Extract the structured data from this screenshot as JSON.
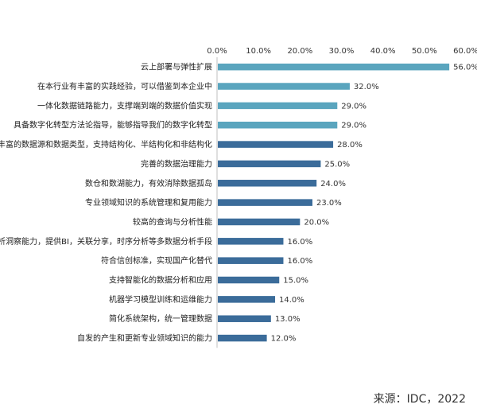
{
  "chart_data": {
    "type": "bar",
    "orientation": "horizontal",
    "xlim": [
      0,
      60
    ],
    "ticks": [
      "0.0%",
      "10.0%",
      "20.0%",
      "30.0%",
      "40.0%",
      "50.0%",
      "60.0%"
    ],
    "tick_values": [
      0,
      10,
      20,
      30,
      40,
      50,
      60
    ],
    "axis_position": "top",
    "grid": false,
    "categories": [
      "云上部署与弹性扩展",
      "在本行业有丰富的实践经验，可以借鉴到本企业中",
      "一体化数据链路能力，支撑端到端的数据价值实现",
      "具备数字化转型方法论指导，能够指导我们的数字化转型",
      "丰富的数据源和数据类型，支持结构化、半结构化和非结构化",
      "完善的数据治理能力",
      "数仓和数湖能力，有效消除数据孤岛",
      "专业领域知识的系统管理和复用能力",
      "较高的查询与分析性能",
      "分析洞察能力，提供BI，关联分享，时序分析等多数据分析手段",
      "符合信创标准，实现国产化替代",
      "支持智能化的数据分析和应用",
      "机器学习模型训练和运维能力",
      "简化系统架构，统一管理数据",
      "自发的产生和更新专业领域知识的能力"
    ],
    "values": [
      56,
      32,
      29,
      29,
      28,
      25,
      24,
      23,
      20,
      16,
      16,
      15,
      14,
      13,
      12
    ],
    "value_labels": [
      "56.0%",
      "32.0%",
      "29.0%",
      "29.0%",
      "28.0%",
      "25.0%",
      "24.0%",
      "23.0%",
      "20.0%",
      "16.0%",
      "16.0%",
      "15.0%",
      "14.0%",
      "13.0%",
      "12.0%"
    ],
    "colors": [
      "#5aa5be",
      "#5aa5be",
      "#5aa5be",
      "#5aa5be",
      "#3b6c9a",
      "#3b6c9a",
      "#3b6c9a",
      "#3b6c9a",
      "#3b6c9a",
      "#3b6c9a",
      "#3b6c9a",
      "#3b6c9a",
      "#3b6c9a",
      "#3b6c9a",
      "#3b6c9a"
    ]
  },
  "source": "来源：IDC，2022"
}
